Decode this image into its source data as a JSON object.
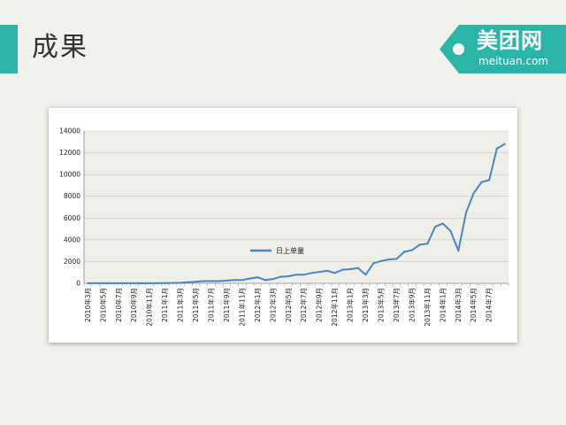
{
  "slide": {
    "title": "成果"
  },
  "logo": {
    "main": "美团网",
    "sub": "meituan.com"
  },
  "colors": {
    "accent": "#2bb5a8",
    "series": "#4a86c5",
    "plot_bg": "#efeee7"
  },
  "chart_data": {
    "type": "line",
    "title": "",
    "xlabel": "",
    "ylabel": "",
    "ylim": [
      0,
      14000
    ],
    "yticks": [
      0,
      2000,
      4000,
      6000,
      8000,
      10000,
      12000,
      14000
    ],
    "xtick_labels": [
      "2010年3月",
      "2010年5月",
      "2010年7月",
      "2010年9月",
      "2010年11月",
      "2011年1月",
      "2011年3月",
      "2011年5月",
      "2011年7月",
      "2011年9月",
      "2011年11月",
      "2012年1月",
      "2012年3月",
      "2012年5月",
      "2012年7月",
      "2012年9月",
      "2012年11月",
      "2013年1月",
      "2013年3月",
      "2013年5月",
      "2013年7月",
      "2013年9月",
      "2013年11月",
      "2014年1月",
      "2014年3月",
      "2014年5月",
      "2014年7月"
    ],
    "grid": true,
    "legend_position": "bottom",
    "series": [
      {
        "name": "日上单量",
        "values": [
          5,
          5,
          5,
          5,
          5,
          5,
          5,
          5,
          10,
          10,
          20,
          30,
          50,
          100,
          150,
          200,
          200,
          200,
          250,
          300,
          300,
          450,
          550,
          300,
          400,
          600,
          650,
          800,
          800,
          950,
          1050,
          1150,
          950,
          1250,
          1300,
          1400,
          800,
          1850,
          2050,
          2200,
          2250,
          2900,
          3050,
          3550,
          3650,
          5200,
          5500,
          4800,
          3000,
          6500,
          8300,
          9300,
          9500,
          12400,
          12800
        ]
      }
    ]
  }
}
